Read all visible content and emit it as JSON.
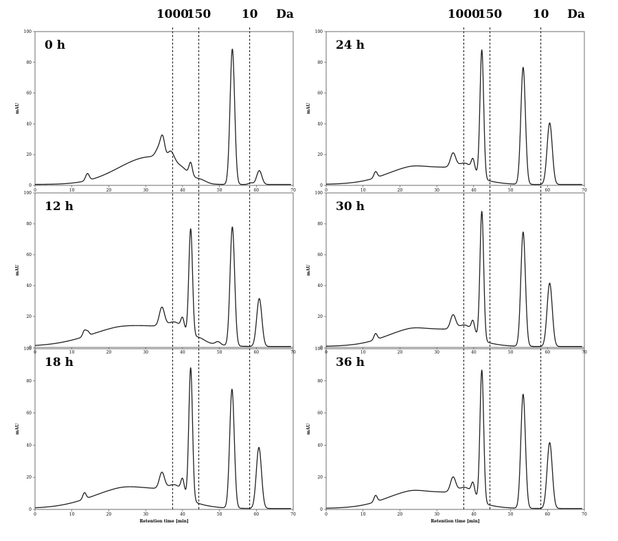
{
  "figure": {
    "marker_unit": "Da",
    "markers": [
      {
        "label": "1000",
        "x": 37.3
      },
      {
        "label": "150",
        "x": 44.4
      },
      {
        "label": "10",
        "x": 58.2
      }
    ]
  },
  "chart_data": [
    {
      "type": "line",
      "panel": "0 h",
      "title": "0 h",
      "ylabel": "mAU",
      "xlabel": "",
      "xlim": [
        0,
        70
      ],
      "ylim": [
        0,
        100
      ],
      "x_ticks": [
        0,
        10,
        20,
        30,
        40,
        50,
        60,
        70
      ],
      "y_ticks": [
        0,
        20,
        40,
        60,
        80,
        100
      ],
      "baseline": 0.6,
      "broad": [
        {
          "x": 31.5,
          "h": 18,
          "w": 5.5
        }
      ],
      "peaks": [
        {
          "x": 14.2,
          "h": 4.5,
          "w": 0.5
        },
        {
          "x": 33.5,
          "h": 6,
          "w": 0.8
        },
        {
          "x": 34.6,
          "h": 13,
          "w": 0.6
        },
        {
          "x": 36.8,
          "h": 7,
          "w": 0.9
        },
        {
          "x": 39.5,
          "h": 6,
          "w": 2.5
        },
        {
          "x": 42.2,
          "h": 8,
          "w": 0.45
        },
        {
          "x": 45.0,
          "h": 2,
          "w": 1.5
        },
        {
          "x": 53.5,
          "h": 88,
          "w": 0.62
        },
        {
          "x": 58.5,
          "h": 1,
          "w": 0.6
        },
        {
          "x": 60.8,
          "h": 9,
          "w": 0.7
        }
      ]
    },
    {
      "type": "line",
      "panel": "24 h",
      "title": "24 h",
      "ylabel": "mAU",
      "xlabel": "",
      "xlim": [
        0,
        70
      ],
      "ylim": [
        0,
        100
      ],
      "x_ticks": [
        0,
        10,
        20,
        30,
        40,
        50,
        60,
        70
      ],
      "y_ticks": [
        0,
        20,
        40,
        60,
        80,
        100
      ],
      "baseline": 0.6,
      "broad": [
        {
          "x": 32,
          "h": 11,
          "w": 7
        },
        {
          "x": 22,
          "h": 4,
          "w": 4
        }
      ],
      "peaks": [
        {
          "x": 13.4,
          "h": 4,
          "w": 0.45
        },
        {
          "x": 34.4,
          "h": 9,
          "w": 0.7
        },
        {
          "x": 39.8,
          "h": 7,
          "w": 0.45
        },
        {
          "x": 38.0,
          "h": 6,
          "w": 2.0
        },
        {
          "x": 42.2,
          "h": 83,
          "w": 0.5
        },
        {
          "x": 53.4,
          "h": 76,
          "w": 0.62
        },
        {
          "x": 60.6,
          "h": 40,
          "w": 0.7
        }
      ]
    },
    {
      "type": "line",
      "panel": "12 h",
      "title": "12 h",
      "ylabel": "mAU",
      "xlabel": "",
      "xlim": [
        0,
        70
      ],
      "ylim": [
        0,
        100
      ],
      "x_ticks": [
        0,
        10,
        20,
        30,
        40,
        50,
        60,
        70
      ],
      "y_ticks": [
        0,
        20,
        40,
        60,
        80,
        100
      ],
      "baseline": 0.6,
      "broad": [
        {
          "x": 32,
          "h": 13,
          "w": 8
        },
        {
          "x": 21,
          "h": 3,
          "w": 5
        }
      ],
      "peaks": [
        {
          "x": 13.4,
          "h": 4,
          "w": 0.45
        },
        {
          "x": 14.3,
          "h": 2.5,
          "w": 0.4
        },
        {
          "x": 34.4,
          "h": 12,
          "w": 0.7
        },
        {
          "x": 40.0,
          "h": 7,
          "w": 0.45
        },
        {
          "x": 38.2,
          "h": 6,
          "w": 2.0
        },
        {
          "x": 42.2,
          "h": 69,
          "w": 0.5
        },
        {
          "x": 44.5,
          "h": 2,
          "w": 1.5
        },
        {
          "x": 49.6,
          "h": 2,
          "w": 0.7
        },
        {
          "x": 53.5,
          "h": 77,
          "w": 0.62
        },
        {
          "x": 60.8,
          "h": 31,
          "w": 0.7
        }
      ]
    },
    {
      "type": "line",
      "panel": "30 h",
      "title": "30 h",
      "ylabel": "mAU",
      "xlabel": "",
      "xlim": [
        0,
        70
      ],
      "ylim": [
        0,
        100
      ],
      "x_ticks": [
        0,
        10,
        20,
        30,
        40,
        50,
        60,
        70
      ],
      "y_ticks": [
        0,
        20,
        40,
        60,
        80,
        100
      ],
      "baseline": 0.6,
      "broad": [
        {
          "x": 32,
          "h": 11,
          "w": 7
        },
        {
          "x": 22,
          "h": 4,
          "w": 4
        }
      ],
      "peaks": [
        {
          "x": 13.4,
          "h": 4,
          "w": 0.45
        },
        {
          "x": 34.4,
          "h": 9,
          "w": 0.7
        },
        {
          "x": 39.8,
          "h": 7,
          "w": 0.45
        },
        {
          "x": 38.0,
          "h": 6,
          "w": 2.0
        },
        {
          "x": 42.2,
          "h": 83,
          "w": 0.5
        },
        {
          "x": 53.4,
          "h": 74,
          "w": 0.62
        },
        {
          "x": 60.6,
          "h": 41,
          "w": 0.7
        }
      ]
    },
    {
      "type": "line",
      "panel": "18 h",
      "title": "18 h",
      "ylabel": "mAU",
      "xlabel": "Retention time [min]",
      "xlim": [
        0,
        70
      ],
      "ylim": [
        0,
        100
      ],
      "x_ticks": [
        0,
        10,
        20,
        30,
        40,
        50,
        60,
        70
      ],
      "y_ticks": [
        0,
        20,
        40,
        60,
        80,
        100
      ],
      "baseline": 0.6,
      "broad": [
        {
          "x": 32,
          "h": 12,
          "w": 7.5
        },
        {
          "x": 22,
          "h": 4,
          "w": 5
        }
      ],
      "peaks": [
        {
          "x": 13.4,
          "h": 4,
          "w": 0.45
        },
        {
          "x": 34.4,
          "h": 10,
          "w": 0.7
        },
        {
          "x": 40.0,
          "h": 8,
          "w": 0.45
        },
        {
          "x": 38.2,
          "h": 6,
          "w": 2.0
        },
        {
          "x": 42.2,
          "h": 82,
          "w": 0.5
        },
        {
          "x": 53.4,
          "h": 74,
          "w": 0.62
        },
        {
          "x": 60.7,
          "h": 38,
          "w": 0.7
        }
      ]
    },
    {
      "type": "line",
      "panel": "36 h",
      "title": "36 h",
      "ylabel": "mAU",
      "xlabel": "Retention time [min]",
      "xlim": [
        0,
        70
      ],
      "ylim": [
        0,
        100
      ],
      "x_ticks": [
        0,
        10,
        20,
        30,
        40,
        50,
        60,
        70
      ],
      "y_ticks": [
        0,
        20,
        40,
        60,
        80,
        100
      ],
      "baseline": 0.6,
      "broad": [
        {
          "x": 32,
          "h": 10,
          "w": 7
        },
        {
          "x": 22,
          "h": 4,
          "w": 4
        }
      ],
      "peaks": [
        {
          "x": 13.4,
          "h": 4,
          "w": 0.45
        },
        {
          "x": 34.4,
          "h": 9,
          "w": 0.7
        },
        {
          "x": 39.8,
          "h": 7,
          "w": 0.45
        },
        {
          "x": 38.0,
          "h": 6,
          "w": 2.0
        },
        {
          "x": 42.2,
          "h": 82,
          "w": 0.5
        },
        {
          "x": 53.4,
          "h": 71,
          "w": 0.62
        },
        {
          "x": 60.6,
          "h": 41,
          "w": 0.7
        }
      ]
    }
  ]
}
